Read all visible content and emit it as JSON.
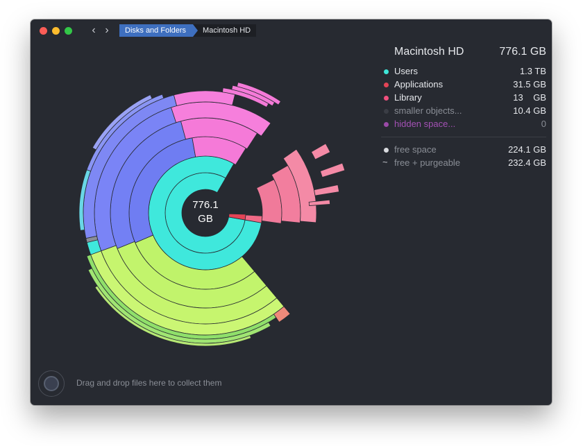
{
  "window": {
    "breadcrumbs": [
      "Disks and Folders",
      "Macintosh HD"
    ]
  },
  "center": {
    "line1": "776.1",
    "line2": "GB"
  },
  "disk": {
    "name": "Macintosh HD",
    "size": "776.1 GB"
  },
  "legend": [
    {
      "label": "Users",
      "value": "1.3 TB",
      "color": "#3ee6d8",
      "label_color": "#e6e8ec"
    },
    {
      "label": "Applications",
      "value": "31.5 GB",
      "color": "#e44456",
      "label_color": "#e6e8ec"
    },
    {
      "label": "Library",
      "value": "13    GB",
      "color": "#f0507e",
      "label_color": "#e6e8ec"
    },
    {
      "label": "smaller objects...",
      "value": "10.4 GB",
      "color": "#3a3d45",
      "label_color": "#8a8e96"
    },
    {
      "label": "hidden space...",
      "value": "0",
      "color": "#9b4aa8",
      "label_color": "#a451b5"
    }
  ],
  "free": [
    {
      "label": "free space",
      "value": "224.1 GB",
      "marker": "dot"
    },
    {
      "label": "free + purgeable",
      "value": "232.4 GB",
      "marker": "~"
    }
  ],
  "collector": {
    "text": "Drag and drop files here to collect them"
  },
  "colors": {
    "background": "#272a31",
    "accent": "#3e6fbf"
  }
}
